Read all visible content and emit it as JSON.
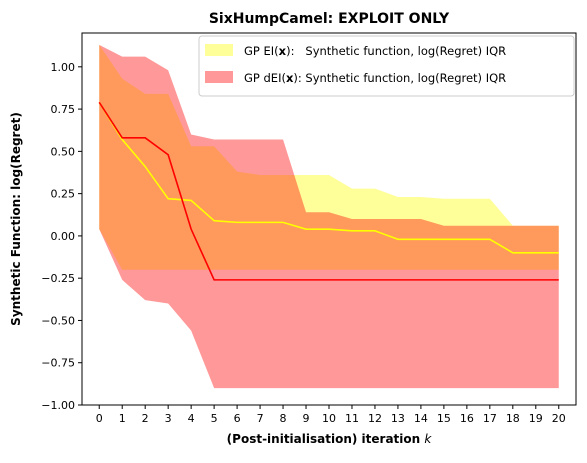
{
  "chart_data": {
    "type": "line",
    "title": "SixHumpCamel: EXPLOIT ONLY",
    "xlabel": "(Post-initialisation) iteration",
    "xlabel_var": "k",
    "ylabel": "Synthetic Function: log(Regret)",
    "xlim": [
      -0.75,
      20.75
    ],
    "ylim": [
      -1.0,
      1.2
    ],
    "x_ticks": [
      0,
      1,
      2,
      3,
      4,
      5,
      6,
      7,
      8,
      9,
      10,
      11,
      12,
      13,
      14,
      15,
      16,
      17,
      18,
      19,
      20
    ],
    "y_ticks": [
      -1.0,
      -0.75,
      -0.5,
      -0.25,
      0.0,
      0.25,
      0.5,
      0.75,
      1.0
    ],
    "y_tick_labels": [
      "−1.00",
      "−0.75",
      "−0.50",
      "−0.25",
      "0.00",
      "0.25",
      "0.50",
      "0.75",
      "1.00"
    ],
    "grid": false,
    "legend_position": "top-right",
    "x": [
      0,
      1,
      2,
      3,
      4,
      5,
      6,
      7,
      8,
      9,
      10,
      11,
      12,
      13,
      14,
      15,
      16,
      17,
      18,
      19,
      20
    ],
    "series": [
      {
        "name": "GP EI(x):   Synthetic function, log(Regret) IQR",
        "legend_prefix": "GP EI(",
        "legend_bold": "x",
        "legend_suffix": "):   Synthetic function, log(Regret) IQR",
        "line_color": "#ffff00",
        "fill_color": "#ffff00",
        "fill_opacity": 0.4,
        "median": [
          0.79,
          0.57,
          0.41,
          0.22,
          0.21,
          0.09,
          0.08,
          0.08,
          0.08,
          0.04,
          0.04,
          0.03,
          0.03,
          -0.02,
          -0.02,
          -0.02,
          -0.02,
          -0.02,
          -0.1,
          -0.1,
          -0.1
        ],
        "q1": [
          0.04,
          -0.2,
          -0.2,
          -0.2,
          -0.2,
          -0.2,
          -0.2,
          -0.2,
          -0.2,
          -0.2,
          -0.2,
          -0.2,
          -0.2,
          -0.2,
          -0.2,
          -0.2,
          -0.2,
          -0.2,
          -0.2,
          -0.2,
          -0.2
        ],
        "q3": [
          1.13,
          0.93,
          0.84,
          0.84,
          0.53,
          0.53,
          0.38,
          0.36,
          0.36,
          0.36,
          0.36,
          0.28,
          0.28,
          0.23,
          0.23,
          0.22,
          0.22,
          0.22,
          0.06,
          0.06,
          0.06
        ]
      },
      {
        "name": "GP dEI(x): Synthetic function, log(Regret) IQR",
        "legend_prefix": "GP dEI(",
        "legend_bold": "x",
        "legend_suffix": "): Synthetic function, log(Regret) IQR",
        "line_color": "#ff0000",
        "fill_color": "#ff0000",
        "fill_opacity": 0.4,
        "median": [
          0.79,
          0.58,
          0.58,
          0.48,
          0.04,
          -0.26,
          -0.26,
          -0.26,
          -0.26,
          -0.26,
          -0.26,
          -0.26,
          -0.26,
          -0.26,
          -0.26,
          -0.26,
          -0.26,
          -0.26,
          -0.26,
          -0.26,
          -0.26
        ],
        "q1": [
          0.04,
          -0.26,
          -0.38,
          -0.4,
          -0.56,
          -0.9,
          -0.9,
          -0.9,
          -0.9,
          -0.9,
          -0.9,
          -0.9,
          -0.9,
          -0.9,
          -0.9,
          -0.9,
          -0.9,
          -0.9,
          -0.9,
          -0.9,
          -0.9
        ],
        "q3": [
          1.13,
          1.06,
          1.06,
          0.98,
          0.6,
          0.57,
          0.57,
          0.57,
          0.57,
          0.14,
          0.14,
          0.1,
          0.1,
          0.1,
          0.1,
          0.06,
          0.06,
          0.06,
          0.06,
          0.06,
          0.06
        ]
      }
    ]
  }
}
